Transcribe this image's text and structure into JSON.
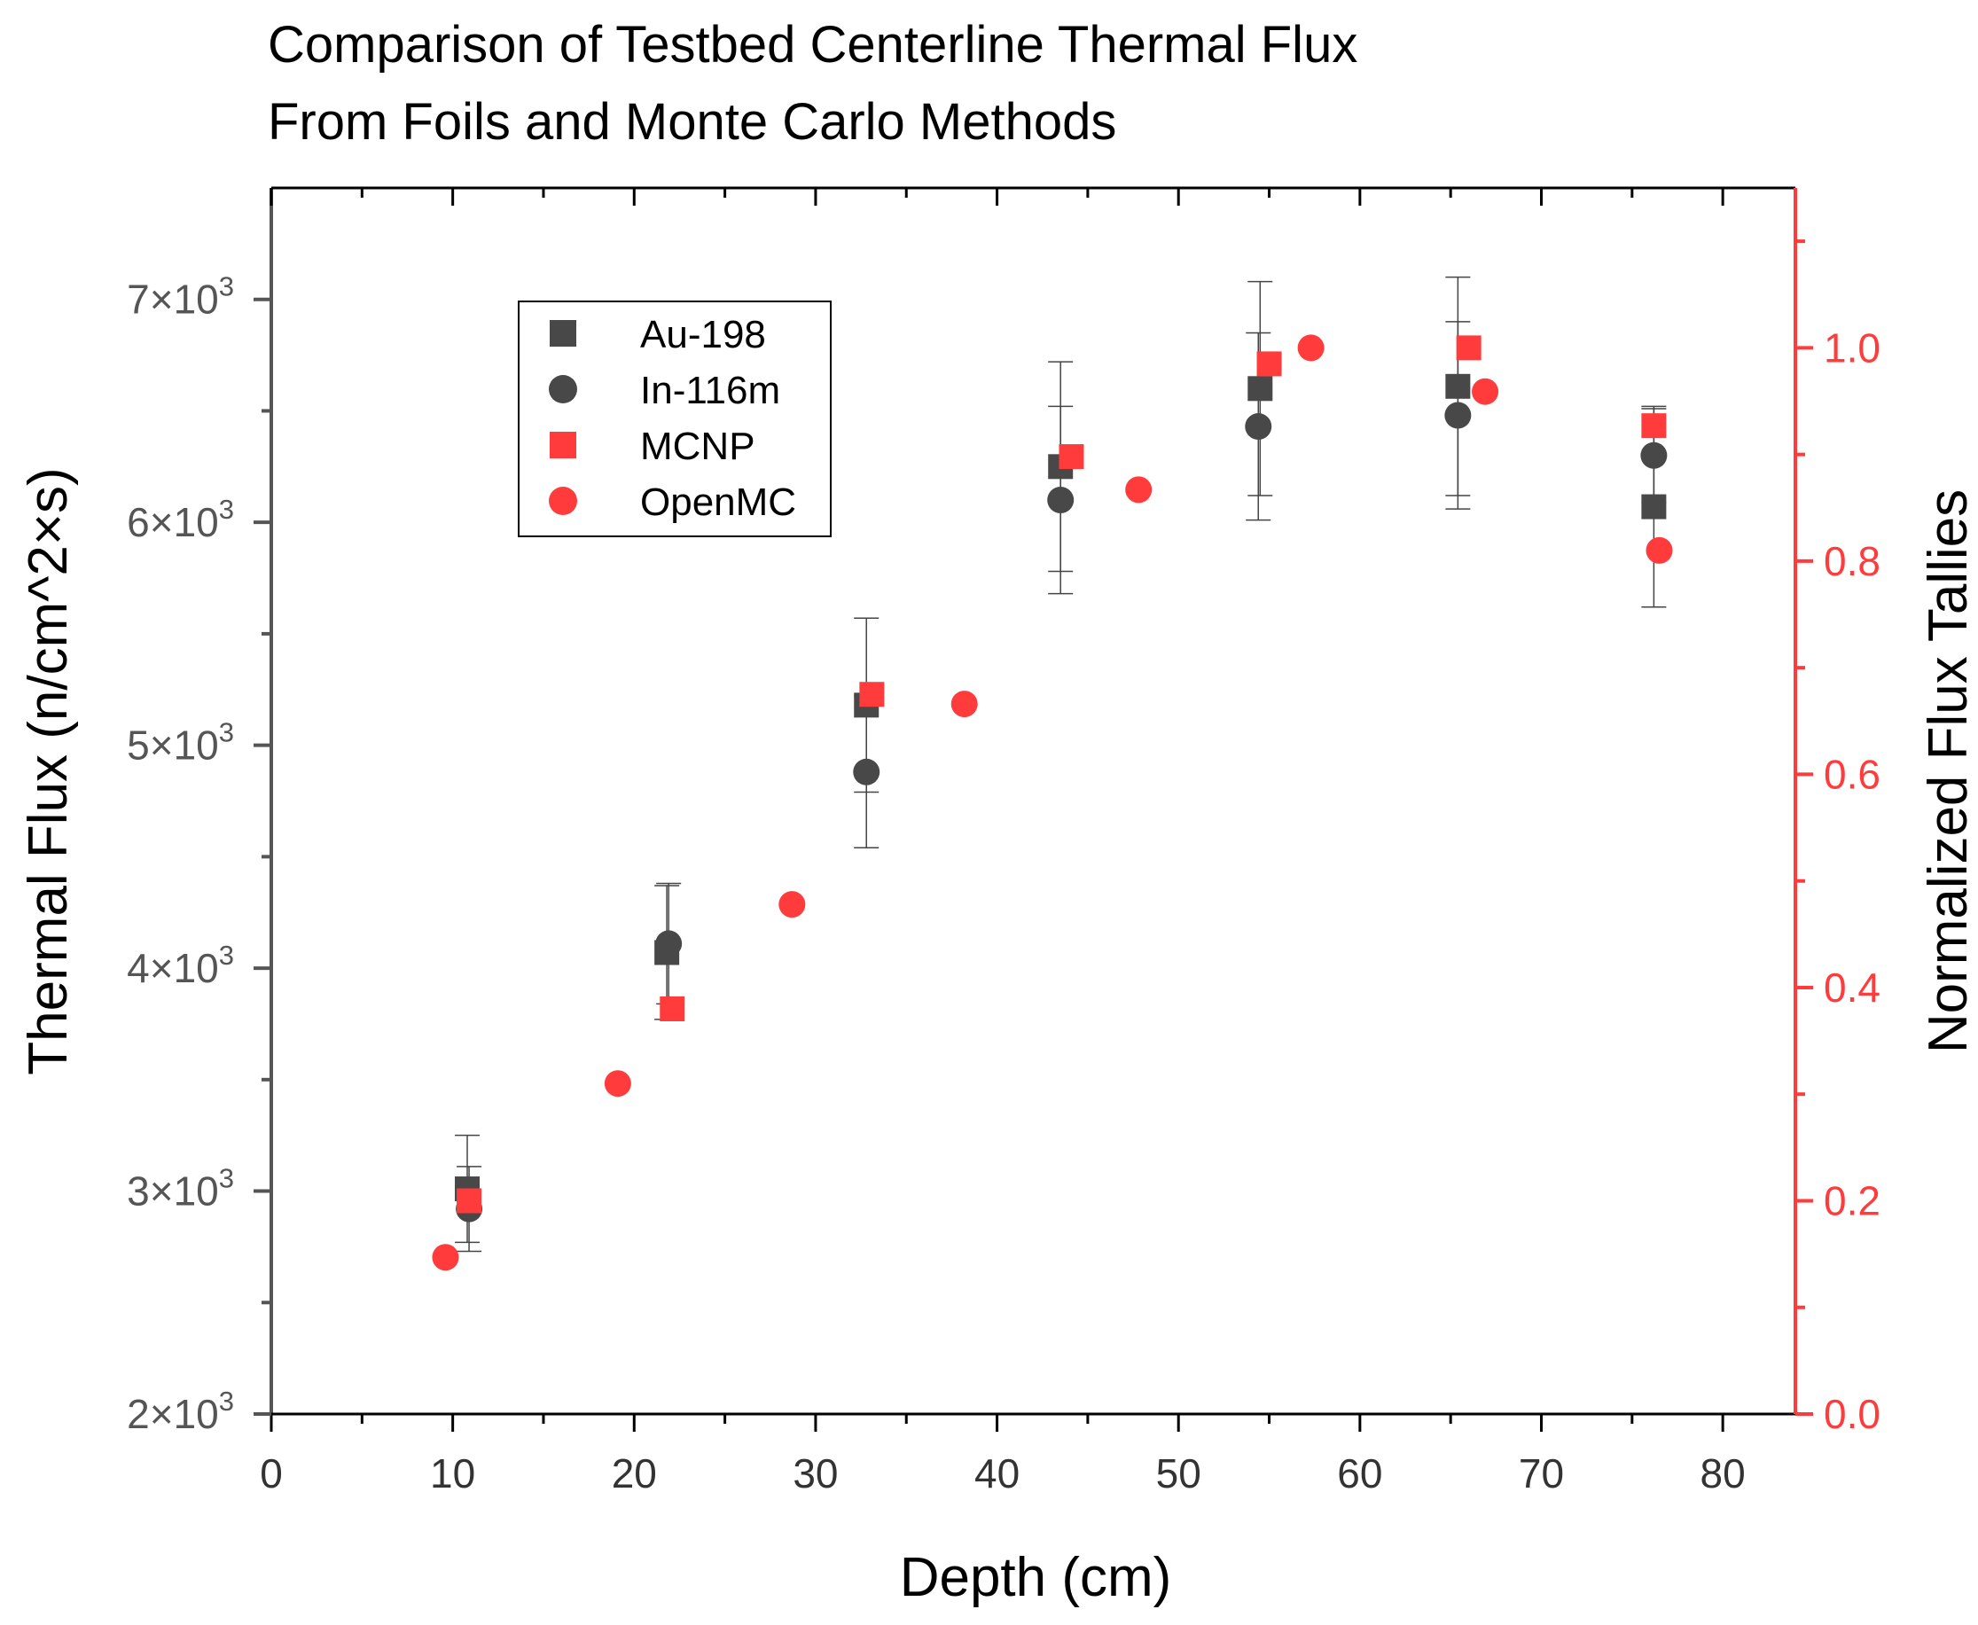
{
  "chart_data": {
    "type": "scatter",
    "title_lines": [
      "Comparison of Testbed Centerline Thermal Flux",
      "From Foils and Monte Carlo Methods"
    ],
    "xlabel": "Depth (cm)",
    "ylabel": "Thermal Flux (n/cm^2×s)",
    "y2label": "Normalized Flux Tallies",
    "xlim": [
      0,
      84
    ],
    "ylim": [
      2000,
      7500
    ],
    "y2lim": [
      0,
      1.15
    ],
    "x_ticks": [
      0,
      10,
      20,
      30,
      40,
      50,
      60,
      70,
      80
    ],
    "x_tick_labels": [
      "0",
      "10",
      "20",
      "30",
      "40",
      "50",
      "60",
      "70",
      "80"
    ],
    "y_ticks": [
      2000,
      3000,
      4000,
      5000,
      6000,
      7000
    ],
    "y_tick_mantissas": [
      "2",
      "3",
      "4",
      "5",
      "6",
      "7"
    ],
    "y_tick_suffix": "×10",
    "y_tick_exponent": "3",
    "y2_ticks": [
      0,
      0.2,
      0.4,
      0.6,
      0.8,
      1.0
    ],
    "y2_tick_labels": [
      "0.0",
      "0.2",
      "0.4",
      "0.6",
      "0.8",
      "1.0"
    ],
    "legend_position": "upper-left",
    "colors": {
      "measured": "#484848",
      "simulated": "#ff3b3b",
      "left_axis": "#555555",
      "right_axis": "#ff3b3b"
    },
    "series": [
      {
        "name": "Au-198",
        "marker": "square",
        "axis": "left",
        "x": [
          10.8,
          21.8,
          32.8,
          43.5,
          54.5,
          65.4,
          76.2
        ],
        "y": [
          3010,
          4070,
          5180,
          6250,
          6600,
          6610,
          6070
        ],
        "err": [
          240,
          300,
          390,
          470,
          480,
          490,
          450
        ]
      },
      {
        "name": "In-116m",
        "marker": "circle",
        "axis": "left",
        "x": [
          10.9,
          21.9,
          32.8,
          43.5,
          54.4,
          65.4,
          76.2
        ],
        "y": [
          2920,
          4110,
          4880,
          6100,
          6430,
          6480,
          6300
        ],
        "err": [
          190,
          270,
          340,
          420,
          420,
          420,
          210
        ]
      },
      {
        "name": "MCNP",
        "marker": "square",
        "axis": "right",
        "x": [
          10.9,
          22.1,
          33.1,
          44.1,
          55.0,
          66.0,
          76.2
        ],
        "y": [
          0.2,
          0.38,
          0.675,
          0.898,
          0.985,
          1.0,
          0.927
        ]
      },
      {
        "name": "OpenMC",
        "marker": "circle",
        "axis": "right",
        "x": [
          9.6,
          19.1,
          28.7,
          38.2,
          47.8,
          57.3,
          66.9,
          76.5
        ],
        "y": [
          0.147,
          0.31,
          0.478,
          0.666,
          0.867,
          1.0,
          0.959,
          0.81
        ]
      }
    ]
  }
}
